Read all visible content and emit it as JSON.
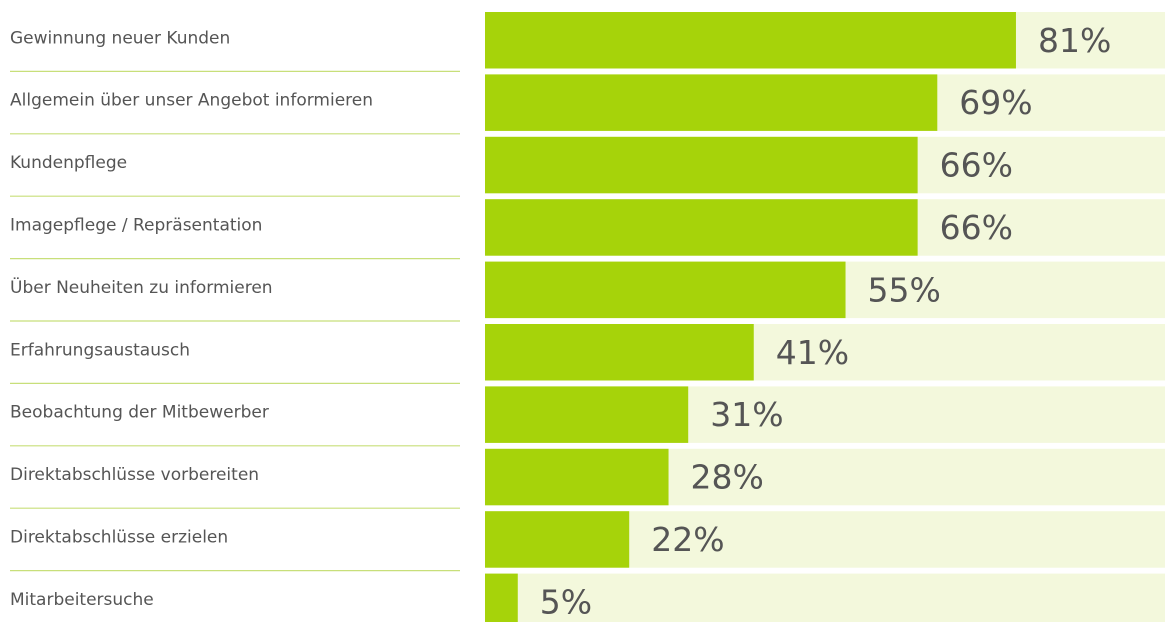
{
  "chart_data": {
    "type": "bar",
    "categories": [
      "Gewinnung neuer Kunden",
      "Allgemein über unser Angebot informieren",
      "Kundenpflege",
      "Imagepflege / Repräsentation",
      "Über Neuheiten zu informieren",
      "Erfahrungsaustausch",
      "Beobachtung der Mitbewerber",
      "Direktabschlüsse vorbereiten",
      "Direktabschlüsse erzielen",
      "Mitarbeitersuche"
    ],
    "values": [
      81,
      69,
      66,
      66,
      55,
      41,
      31,
      28,
      22,
      5
    ],
    "value_labels": [
      "81%",
      "69%",
      "66%",
      "66%",
      "55%",
      "41%",
      "31%",
      "28%",
      "22%",
      "5%"
    ],
    "color": "#a6d30a"
  }
}
